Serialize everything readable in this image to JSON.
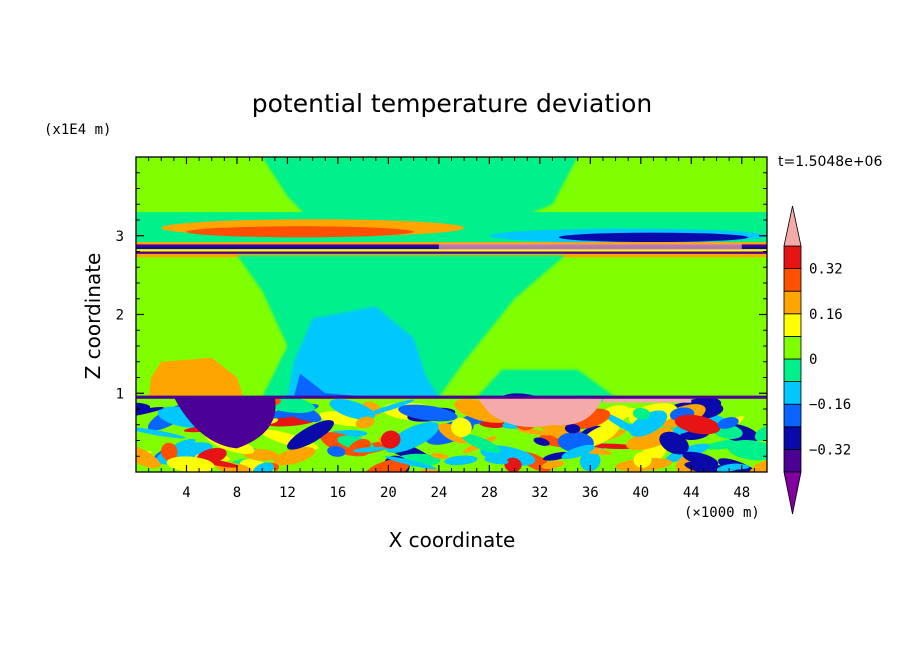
{
  "chart_data": {
    "type": "heatmap",
    "title": "potential temperature deviation",
    "xlabel": "X coordinate",
    "ylabel": "Z coordinate",
    "x_unit": "(×1000 m)",
    "y_unit": "(x1E4 m)",
    "time_label": "t=1.5048e+06",
    "xlim": [
      0,
      50
    ],
    "ylim": [
      0,
      4
    ],
    "x_ticks": [
      4,
      8,
      12,
      16,
      20,
      24,
      28,
      32,
      36,
      40,
      44,
      48
    ],
    "x_tick_labels": [
      "4",
      "8",
      "12",
      "16",
      "20",
      "24",
      "28",
      "32",
      "36",
      "40",
      "44",
      "48"
    ],
    "y_ticks": [
      1,
      2,
      3
    ],
    "y_tick_labels": [
      "1",
      "2",
      "3"
    ],
    "colorbar": {
      "levels": [
        -0.4,
        -0.32,
        -0.24,
        -0.16,
        -0.08,
        0,
        0.08,
        0.16,
        0.24,
        0.32,
        0.4
      ],
      "tick_values": [
        0.32,
        0.16,
        0,
        -0.16,
        -0.32
      ],
      "tick_labels": [
        "0.32",
        "0.16",
        "0",
        "−0.16",
        "−0.32"
      ],
      "colors_low_to_high": [
        "#8000a0",
        "#4b0096",
        "#0a0aaa",
        "#0a64ff",
        "#00c8ff",
        "#00f08c",
        "#7fff00",
        "#ffff00",
        "#ffa500",
        "#ff5000",
        "#e61414",
        "#f5aaaa"
      ],
      "extend": "both"
    },
    "regions": [
      {
        "desc": "upper background",
        "x": [
          0,
          50
        ],
        "z": [
          2.85,
          4.0
        ],
        "value": 0.04
      },
      {
        "desc": "near-neutral plume",
        "x": [
          10,
          35
        ],
        "z": [
          2.85,
          4.0
        ],
        "value": -0.04
      },
      {
        "desc": "warm band",
        "x": [
          2,
          30
        ],
        "z": [
          3.0,
          3.25
        ],
        "value": 0.2
      },
      {
        "desc": "sharp inversion",
        "x": [
          0,
          50
        ],
        "z": [
          2.75,
          2.9
        ],
        "value": -0.36
      },
      {
        "desc": "lower background",
        "x": [
          0,
          50
        ],
        "z": [
          0.95,
          2.75
        ],
        "value": 0.04
      },
      {
        "desc": "cool plume",
        "x": [
          10,
          24
        ],
        "z": [
          0.95,
          2.0
        ],
        "value": -0.12
      },
      {
        "desc": "warm patch",
        "x": [
          1,
          8
        ],
        "z": [
          0.95,
          1.45
        ],
        "value": 0.2
      },
      {
        "desc": "turbulent boundary layer",
        "x": [
          0,
          50
        ],
        "z": [
          0,
          0.95
        ],
        "value": "mixed"
      },
      {
        "desc": "cold pool",
        "x": [
          3,
          11
        ],
        "z": [
          0.25,
          0.95
        ],
        "value": -0.4
      },
      {
        "desc": "warm anomaly",
        "x": [
          27,
          37
        ],
        "z": [
          0.45,
          0.95
        ],
        "value": 0.4
      }
    ]
  }
}
